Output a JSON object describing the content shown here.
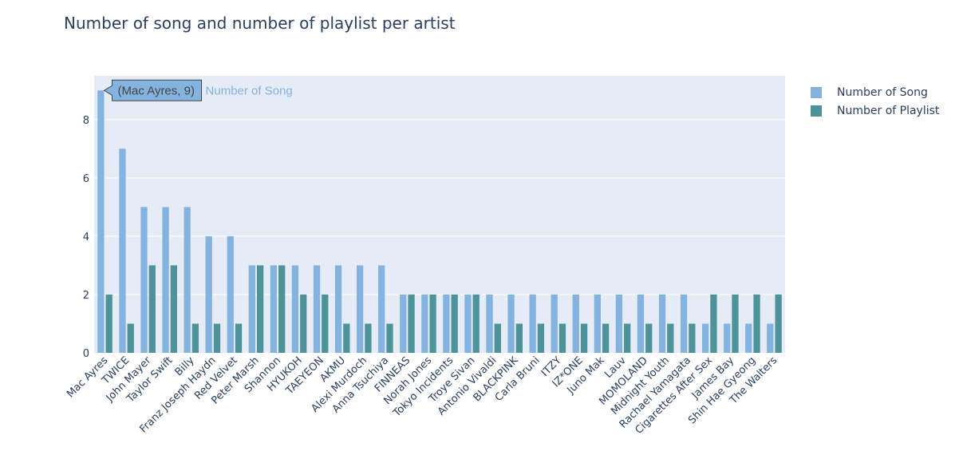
{
  "title": "Number of song and number of playlist per artist",
  "legend": {
    "items": [
      {
        "label": "Number of Song",
        "color": "#85b3e0"
      },
      {
        "label": "Number of Playlist",
        "color": "#4e9399"
      }
    ]
  },
  "tooltip": {
    "text": "(Mac Ayres, 9)",
    "series_label": "Number of Song"
  },
  "colors": {
    "plot_bg": "#e5ecf6",
    "grid": "#ffffff",
    "song": "#85b3e0",
    "playlist": "#4e9399"
  },
  "chart_data": {
    "type": "bar",
    "title": "Number of song and number of playlist per artist",
    "xlabel": "",
    "ylabel": "",
    "ylim": [
      0,
      9.5
    ],
    "yticks": [
      0,
      2,
      4,
      6,
      8
    ],
    "grid": true,
    "legend_position": "top-right",
    "categories": [
      "Mac Ayres",
      "TWICE",
      "John Mayer",
      "Taylor Swift",
      "Billy",
      "Franz Joseph Haydn",
      "Red Velvet",
      "Peter Marsh",
      "Shannon",
      "HYUKOH",
      "TAEYEON",
      "AKMU",
      "Alexi Murdoch",
      "Anna Tsuchiya",
      "FINNEAS",
      "Norah Jones",
      "Tokyo Incidents",
      "Troye Sivan",
      "Antonio Vivaldi",
      "BLACKPINK",
      "Carla Bruni",
      "ITZY",
      "IZ*ONE",
      "Juno Mak",
      "Lauv",
      "MOMOLAND",
      "Midnight Youth",
      "Rachael Yamagata",
      "Cigarettes After Sex",
      "James Bay",
      "Shin Hae Gyeong",
      "The Walters"
    ],
    "series": [
      {
        "name": "Number of Song",
        "values": [
          9,
          7,
          5,
          5,
          5,
          4,
          4,
          3,
          3,
          3,
          3,
          3,
          3,
          3,
          2,
          2,
          2,
          2,
          2,
          2,
          2,
          2,
          2,
          2,
          2,
          2,
          2,
          2,
          1,
          1,
          1,
          1
        ]
      },
      {
        "name": "Number of Playlist",
        "values": [
          2,
          1,
          3,
          3,
          1,
          1,
          1,
          3,
          3,
          2,
          2,
          1,
          1,
          1,
          2,
          2,
          2,
          2,
          1,
          1,
          1,
          1,
          1,
          1,
          1,
          1,
          1,
          1,
          2,
          2,
          2,
          2
        ]
      }
    ]
  }
}
